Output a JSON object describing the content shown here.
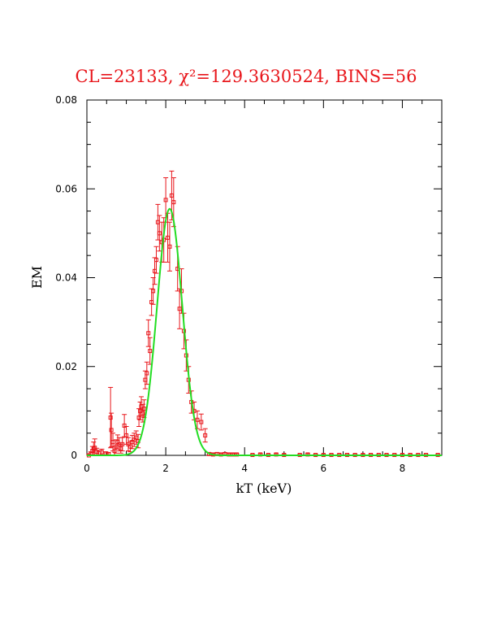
{
  "chart_data": {
    "type": "scatter",
    "title": "CL=23133, χ²=129.3630524, BINS=56",
    "xlabel": "kT (keV)",
    "ylabel": "EM",
    "xlim": [
      0,
      9
    ],
    "ylim": [
      0,
      0.08
    ],
    "x_ticks": [
      0,
      2,
      4,
      6,
      8
    ],
    "x_tick_labels": [
      "0",
      "2",
      "4",
      "6",
      "8"
    ],
    "y_ticks": [
      0,
      0.02,
      0.04,
      0.06,
      0.08
    ],
    "y_tick_labels": [
      "0",
      "0.02",
      "0.04",
      "0.06",
      "0.08"
    ],
    "grid": false,
    "colors": {
      "points": "#e8161b",
      "fit": "#22dd22",
      "title": "#e8161b",
      "axes": "#000000"
    },
    "series": [
      {
        "type": "scatter_errorbars",
        "points": [
          [
            0.05,
            0.0,
            0.0003
          ],
          [
            0.1,
            0.0003,
            0.0005
          ],
          [
            0.14,
            0.001,
            0.001
          ],
          [
            0.17,
            0.0015,
            0.0015
          ],
          [
            0.2,
            0.0017,
            0.002
          ],
          [
            0.25,
            0.0008,
            0.0008
          ],
          [
            0.3,
            0.0005,
            0.0006
          ],
          [
            0.38,
            0.0007,
            0.0007
          ],
          [
            0.48,
            0.0004,
            0.0004
          ],
          [
            0.55,
            0.0003,
            0.0003
          ],
          [
            0.6,
            0.0085,
            0.0068
          ],
          [
            0.62,
            0.0057,
            0.0038
          ],
          [
            0.66,
            0.003,
            0.002
          ],
          [
            0.7,
            0.001,
            0.001
          ],
          [
            0.74,
            0.002,
            0.0015
          ],
          [
            0.78,
            0.003,
            0.0016
          ],
          [
            0.82,
            0.0025,
            0.0015
          ],
          [
            0.86,
            0.0015,
            0.001
          ],
          [
            0.9,
            0.0025,
            0.0015
          ],
          [
            0.95,
            0.0067,
            0.0025
          ],
          [
            1.0,
            0.0045,
            0.002
          ],
          [
            1.05,
            0.0025,
            0.0015
          ],
          [
            1.1,
            0.002,
            0.0012
          ],
          [
            1.15,
            0.003,
            0.0015
          ],
          [
            1.2,
            0.0035,
            0.0015
          ],
          [
            1.25,
            0.004,
            0.0015
          ],
          [
            1.3,
            0.0032,
            0.0015
          ],
          [
            1.32,
            0.0085,
            0.002
          ],
          [
            1.35,
            0.01,
            0.002
          ],
          [
            1.38,
            0.011,
            0.0022
          ],
          [
            1.42,
            0.0095,
            0.002
          ],
          [
            1.45,
            0.0105,
            0.002
          ],
          [
            1.48,
            0.017,
            0.002
          ],
          [
            1.52,
            0.0185,
            0.0025
          ],
          [
            1.56,
            0.0275,
            0.003
          ],
          [
            1.6,
            0.0235,
            0.003
          ],
          [
            1.64,
            0.0345,
            0.003
          ],
          [
            1.68,
            0.037,
            0.003
          ],
          [
            1.72,
            0.0415,
            0.003
          ],
          [
            1.76,
            0.044,
            0.003
          ],
          [
            1.8,
            0.0525,
            0.004
          ],
          [
            1.84,
            0.05,
            0.004
          ],
          [
            1.9,
            0.048,
            0.0045
          ],
          [
            1.95,
            0.0485,
            0.005
          ],
          [
            2.0,
            0.0575,
            0.005
          ],
          [
            2.05,
            0.049,
            0.0055
          ],
          [
            2.1,
            0.047,
            0.0055
          ],
          [
            2.15,
            0.0585,
            0.0055
          ],
          [
            2.2,
            0.057,
            0.0055
          ],
          [
            2.3,
            0.042,
            0.005
          ],
          [
            2.35,
            0.033,
            0.0045
          ],
          [
            2.4,
            0.037,
            0.005
          ],
          [
            2.46,
            0.028,
            0.004
          ],
          [
            2.52,
            0.0225,
            0.0035
          ],
          [
            2.58,
            0.017,
            0.003
          ],
          [
            2.65,
            0.012,
            0.0025
          ],
          [
            2.72,
            0.01,
            0.002
          ],
          [
            2.8,
            0.008,
            0.002
          ],
          [
            2.9,
            0.0075,
            0.0018
          ],
          [
            3.0,
            0.0045,
            0.0015
          ],
          [
            3.1,
            0.0003,
            0.0003
          ],
          [
            3.2,
            0.0002,
            0.0002
          ],
          [
            3.3,
            0.0003,
            0.0003
          ],
          [
            3.4,
            0.0002,
            0.0002
          ],
          [
            3.5,
            0.0003,
            0.0003
          ],
          [
            3.6,
            0.0002,
            0.0002
          ],
          [
            3.7,
            0.0002,
            0.0002
          ],
          [
            3.8,
            0.0002,
            0.0002
          ],
          [
            4.2,
            0.0001,
            0.0001
          ],
          [
            4.4,
            0.0002,
            0.0002
          ],
          [
            4.6,
            0.0001,
            0.0001
          ],
          [
            4.8,
            0.0002,
            0.0002
          ],
          [
            5.0,
            0.0001,
            0.0001
          ],
          [
            5.4,
            0.0001,
            0.0001
          ],
          [
            5.6,
            0.0002,
            0.0002
          ],
          [
            5.8,
            0.0001,
            0.0001
          ],
          [
            6.0,
            0.0001,
            0.0001
          ],
          [
            6.2,
            0.0001,
            0.0001
          ],
          [
            6.4,
            0.0001,
            0.0001
          ],
          [
            6.6,
            0.0001,
            0.0001
          ],
          [
            6.8,
            0.0001,
            0.0001
          ],
          [
            7.0,
            0.0001,
            0.0001
          ],
          [
            7.2,
            0.0001,
            0.0001
          ],
          [
            7.4,
            0.0001,
            0.0001
          ],
          [
            7.6,
            0.0001,
            0.0001
          ],
          [
            7.8,
            0.0001,
            0.0001
          ],
          [
            8.0,
            0.0001,
            0.0001
          ],
          [
            8.2,
            0.0001,
            0.0001
          ],
          [
            8.4,
            0.0001,
            0.0001
          ],
          [
            8.6,
            0.0001,
            0.0001
          ],
          [
            8.9,
            0.0001,
            0.0001
          ]
        ]
      },
      {
        "type": "line",
        "model": "gaussian",
        "amplitude": 0.0555,
        "center": 2.1,
        "sigma": 0.32
      }
    ]
  }
}
